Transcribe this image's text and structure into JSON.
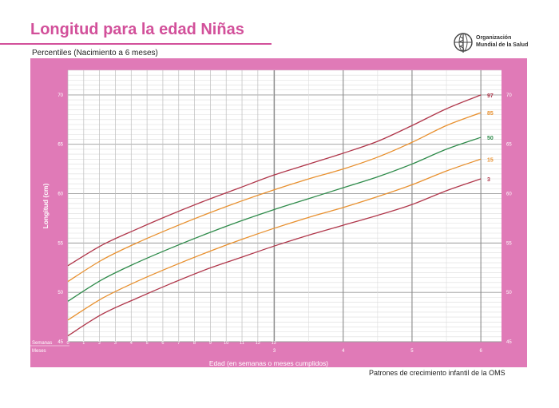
{
  "header": {
    "title": "Longitud para la edad Niñas",
    "subtitle": "Percentiles (Nacimiento a 6 meses)",
    "logo_line1": "Organización",
    "logo_line2": "Mundial de la Salud",
    "footer": "Patrones de crecimiento infantil de la OMS"
  },
  "colors": {
    "frame": "#e07ab7",
    "plot_bg": "#ffffff",
    "title": "#d2509a",
    "p97": "#b0364a",
    "p85": "#e8902e",
    "p50": "#2e8b4a",
    "p15": "#e8902e",
    "p3": "#b0364a"
  },
  "chart_data": {
    "type": "line",
    "title": "Longitud para la edad Niñas",
    "subtitle": "Percentiles (Nacimiento a 6 meses)",
    "xlabel": "Edad (en semanas o meses cumplidos)",
    "ylabel": "Longitud (cm)",
    "weeks_label": "Semanas",
    "months_label": "Meses",
    "week_ticks": [
      "0",
      "1",
      "2",
      "3",
      "4",
      "5",
      "6",
      "7",
      "8",
      "9",
      "10",
      "11",
      "12",
      "13"
    ],
    "month_ticks": [
      "3",
      "4",
      "5",
      "6"
    ],
    "y_ticks": [
      "45",
      "50",
      "55",
      "60",
      "65",
      "70"
    ],
    "ylim": [
      45,
      72.5
    ],
    "xlim_months": [
      0,
      6.3
    ],
    "grid": true,
    "series": [
      {
        "name": "97",
        "color_key": "p97",
        "x": [
          0,
          0.5,
          1,
          1.5,
          2,
          2.5,
          3,
          3.5,
          4,
          4.5,
          5,
          5.5,
          6
        ],
        "y": [
          52.7,
          54.8,
          56.4,
          57.9,
          59.3,
          60.6,
          61.9,
          63.0,
          64.1,
          65.3,
          66.9,
          68.6,
          70.0
        ]
      },
      {
        "name": "85",
        "color_key": "p85",
        "x": [
          0,
          0.5,
          1,
          1.5,
          2,
          2.5,
          3,
          3.5,
          4,
          4.5,
          5,
          5.5,
          6
        ],
        "y": [
          51.1,
          53.3,
          55.0,
          56.5,
          57.9,
          59.2,
          60.4,
          61.5,
          62.5,
          63.7,
          65.2,
          66.9,
          68.2
        ]
      },
      {
        "name": "50",
        "color_key": "p50",
        "x": [
          0,
          0.5,
          1,
          1.5,
          2,
          2.5,
          3,
          3.5,
          4,
          4.5,
          5,
          5.5,
          6
        ],
        "y": [
          49.1,
          51.3,
          53.0,
          54.5,
          55.9,
          57.2,
          58.4,
          59.5,
          60.6,
          61.7,
          63.0,
          64.5,
          65.7
        ]
      },
      {
        "name": "15",
        "color_key": "p15",
        "x": [
          0,
          0.5,
          1,
          1.5,
          2,
          2.5,
          3,
          3.5,
          4,
          4.5,
          5,
          5.5,
          6
        ],
        "y": [
          47.2,
          49.4,
          51.1,
          52.6,
          54.0,
          55.3,
          56.5,
          57.6,
          58.6,
          59.7,
          60.9,
          62.3,
          63.5
        ]
      },
      {
        "name": "3",
        "color_key": "p3",
        "x": [
          0,
          0.5,
          1,
          1.5,
          2,
          2.5,
          3,
          3.5,
          4,
          4.5,
          5,
          5.5,
          6
        ],
        "y": [
          45.6,
          47.8,
          49.4,
          50.9,
          52.3,
          53.5,
          54.7,
          55.8,
          56.8,
          57.8,
          58.9,
          60.3,
          61.5
        ]
      }
    ]
  }
}
